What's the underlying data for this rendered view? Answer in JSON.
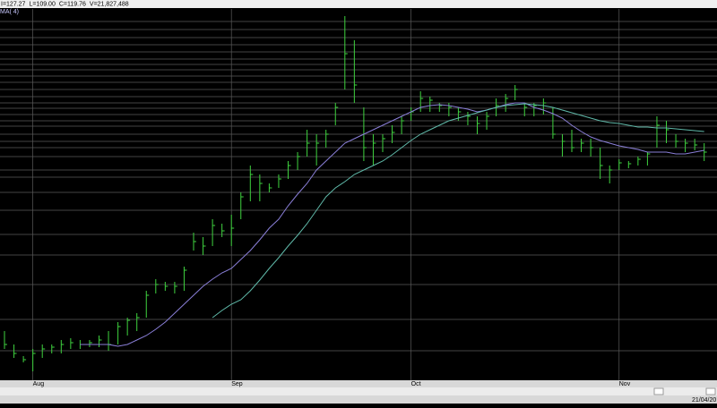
{
  "chart_data": {
    "type": "ohlc",
    "info": [
      "I=127.27",
      "L=109.00",
      "C=119.76",
      "V=21,827,488"
    ],
    "study_label": "MA( 4)",
    "date_label": "21/04/20",
    "categories": [
      null,
      null,
      null,
      "Aug",
      null,
      null,
      null,
      null,
      null,
      null,
      null,
      null,
      null,
      null,
      null,
      null,
      null,
      null,
      null,
      null,
      null,
      null,
      null,
      null,
      "Sep",
      null,
      null,
      null,
      null,
      null,
      null,
      null,
      null,
      null,
      null,
      null,
      null,
      null,
      null,
      null,
      null,
      null,
      null,
      "Oct",
      null,
      null,
      null,
      null,
      null,
      null,
      null,
      null,
      null,
      null,
      null,
      null,
      null,
      null,
      null,
      null,
      null,
      null,
      null,
      null,
      null,
      "Nov",
      null,
      null,
      null,
      null,
      null,
      null,
      null,
      null,
      null
    ],
    "high": [
      55,
      40,
      27,
      35,
      40,
      40,
      45,
      47,
      45,
      45,
      50,
      55,
      65,
      70,
      75,
      100,
      113,
      110,
      110,
      127,
      165,
      160,
      180,
      175,
      185,
      210,
      240,
      230,
      220,
      230,
      245,
      255,
      280,
      275,
      280,
      310,
      407,
      380,
      305,
      275,
      275,
      285,
      295,
      305,
      323,
      317,
      310,
      310,
      305,
      300,
      295,
      300,
      315,
      320,
      330,
      310,
      310,
      315,
      305,
      275,
      280,
      270,
      270,
      260,
      240,
      247,
      245,
      250,
      255,
      295,
      290,
      275,
      270,
      270,
      265
    ],
    "low": [
      35,
      25,
      20,
      10,
      25,
      30,
      30,
      35,
      35,
      37,
      37,
      33,
      40,
      50,
      55,
      70,
      97,
      100,
      97,
      100,
      145,
      140,
      150,
      160,
      150,
      180,
      200,
      200,
      210,
      215,
      225,
      235,
      250,
      240,
      260,
      285,
      325,
      310,
      245,
      240,
      255,
      265,
      275,
      290,
      300,
      300,
      300,
      295,
      290,
      285,
      275,
      280,
      295,
      300,
      313,
      295,
      295,
      297,
      270,
      250,
      255,
      255,
      250,
      225,
      220,
      235,
      237,
      240,
      240,
      260,
      265,
      260,
      255,
      257,
      245
    ],
    "close": [
      40,
      30,
      23,
      30,
      35,
      37,
      40,
      42,
      40,
      42,
      45,
      40,
      60,
      67,
      70,
      95,
      107,
      105,
      105,
      123,
      155,
      150,
      173,
      167,
      170,
      205,
      230,
      220,
      215,
      225,
      240,
      250,
      265,
      265,
      275,
      305,
      365,
      330,
      260,
      265,
      270,
      277,
      290,
      300,
      315,
      313,
      307,
      305,
      300,
      295,
      287,
      295,
      307,
      315,
      325,
      305,
      307,
      310,
      275,
      267,
      260,
      265,
      260,
      240,
      235,
      243,
      242,
      247,
      253,
      285,
      280,
      267,
      265,
      263,
      255
    ],
    "bar_color": "#3fd23f",
    "series": [
      {
        "color": "#8a7fd8",
        "values": [
          null,
          null,
          null,
          null,
          null,
          null,
          null,
          null,
          40,
          40,
          40,
          40,
          38,
          40,
          45,
          50,
          57,
          65,
          75,
          85,
          95,
          105,
          113,
          120,
          125,
          135,
          145,
          157,
          170,
          180,
          195,
          208,
          220,
          235,
          245,
          255,
          265,
          270,
          275,
          280,
          285,
          290,
          295,
          300,
          305,
          307,
          308,
          307,
          305,
          303,
          300,
          302,
          305,
          308,
          310,
          310,
          305,
          302,
          298,
          293,
          285,
          278,
          272,
          268,
          265,
          262,
          260,
          258,
          255,
          255,
          255,
          253,
          253,
          255,
          257
        ]
      },
      {
        "color": "#5fb8a8",
        "values": [
          null,
          null,
          null,
          null,
          null,
          null,
          null,
          null,
          null,
          null,
          null,
          null,
          null,
          null,
          null,
          null,
          null,
          null,
          null,
          null,
          null,
          null,
          70,
          78,
          85,
          90,
          100,
          112,
          125,
          137,
          150,
          162,
          175,
          190,
          205,
          215,
          222,
          230,
          235,
          240,
          245,
          252,
          260,
          268,
          275,
          280,
          285,
          290,
          293,
          296,
          299,
          302,
          305,
          307,
          308,
          309,
          308,
          307,
          305,
          302,
          299,
          296,
          293,
          290,
          288,
          287,
          285,
          283,
          283,
          282,
          282,
          281,
          280,
          279,
          278
        ]
      }
    ],
    "ylim": [
      0,
      415
    ]
  }
}
